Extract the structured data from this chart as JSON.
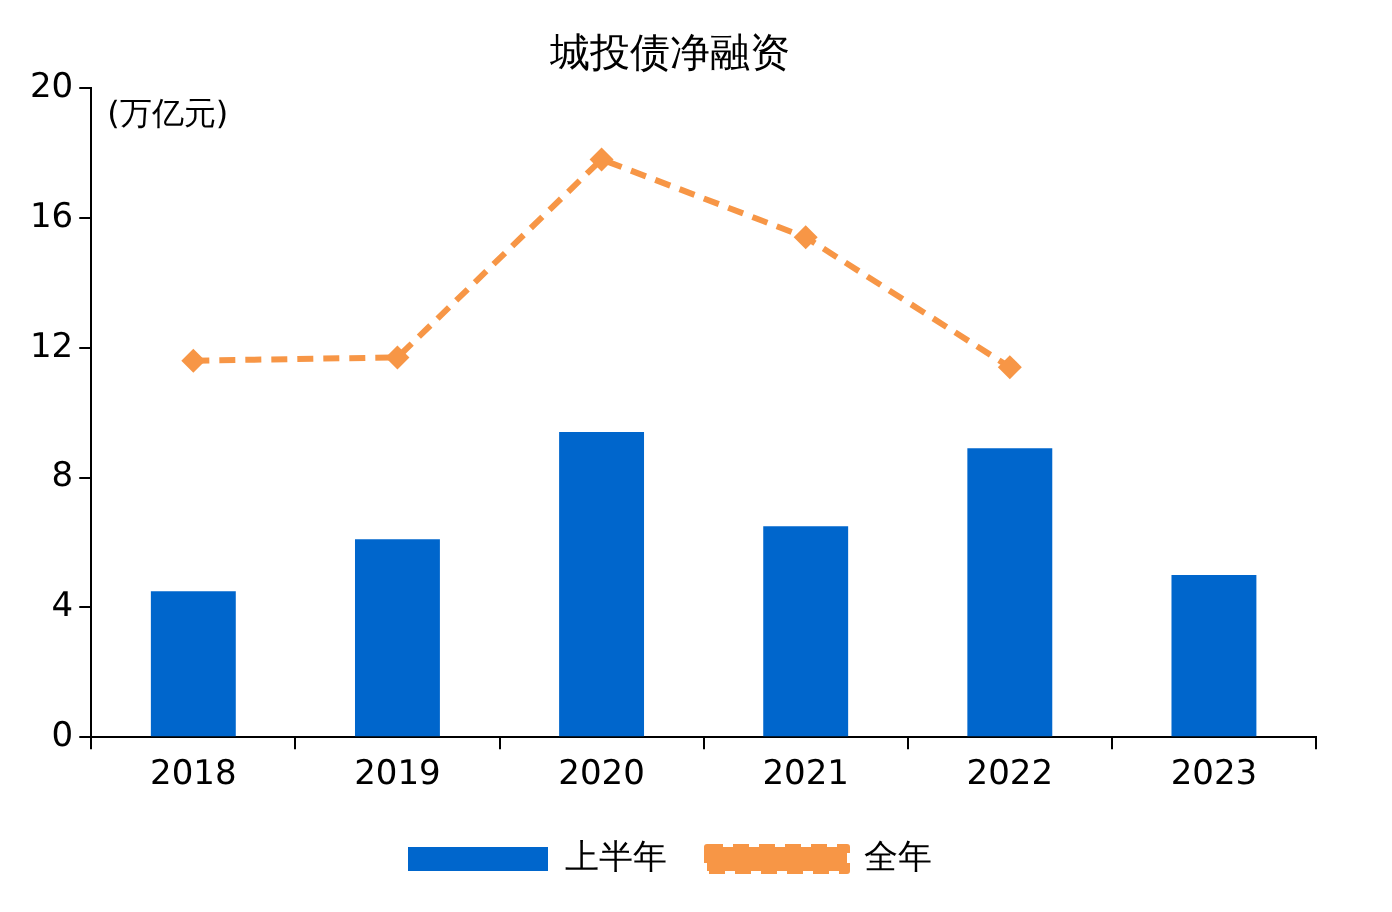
{
  "chart_data": {
    "type": "bar",
    "title": "城投债净融资",
    "ylabel": "(万亿元)",
    "categories": [
      "2018",
      "2019",
      "2020",
      "2021",
      "2022",
      "2023"
    ],
    "series": [
      {
        "name": "上半年",
        "color": "#0066cc",
        "values": [
          4.5,
          6.1,
          9.4,
          6.5,
          8.9,
          5.0
        ]
      },
      {
        "name": "全年",
        "type": "line",
        "color": "#f79646",
        "marker": "diamond",
        "line_style": "dashed",
        "values": [
          11.6,
          11.7,
          17.8,
          15.4,
          11.4,
          null
        ]
      }
    ],
    "ylim": [
      0,
      20
    ],
    "yticks": [
      0,
      4,
      8,
      12,
      16,
      20
    ],
    "grid": false,
    "legend": "bottom"
  }
}
